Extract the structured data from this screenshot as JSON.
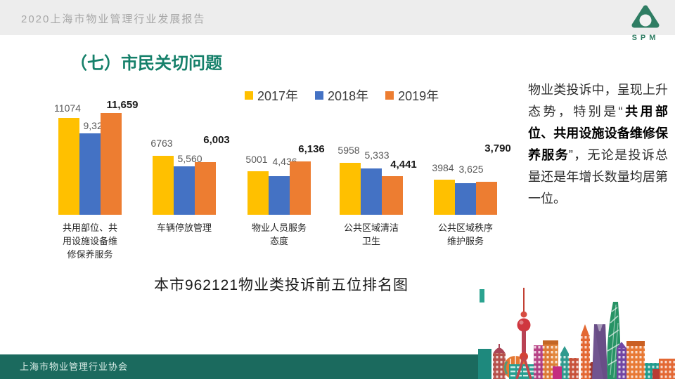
{
  "topbar": {
    "report_title": "2020上海市物业管理行业发展报告"
  },
  "logo": {
    "text": "SPM"
  },
  "page_title": "（七）市民关切问题",
  "chart_data": {
    "type": "bar",
    "title": "本市962121物业类投诉前五位排名图",
    "categories": [
      "共用部位、共用设施设备维修保养服务",
      "车辆停放管理",
      "物业人员服务态度",
      "公共区域清洁卫生",
      "公共区域秩序维护服务"
    ],
    "series": [
      {
        "name": "2017年",
        "color": "#FFC000",
        "values": [
          11074,
          6763,
          5001,
          5958,
          3984
        ],
        "labels": [
          "11074",
          "6763",
          "5001",
          "5958",
          "3984"
        ],
        "bold_labels": false
      },
      {
        "name": "2018年",
        "color": "#4472C4",
        "values": [
          9320,
          5560,
          4436,
          5333,
          3625
        ],
        "labels": [
          "9,320",
          "5,560",
          "4,436",
          "5,333",
          "3,625"
        ],
        "bold_labels": false
      },
      {
        "name": "2019年",
        "color": "#ED7D31",
        "values": [
          11659,
          6003,
          6136,
          4441,
          3790
        ],
        "labels": [
          "11,659",
          "6,003",
          "6,136",
          "4,441",
          "3,790"
        ],
        "bold_labels": true
      }
    ],
    "ylim": [
      0,
      12000
    ],
    "grid": false,
    "legend_position": "top"
  },
  "side_text": {
    "segments": [
      {
        "text": "物业类投诉中，呈现上升态势，特别是“",
        "bold": false
      },
      {
        "text": "共用部位、共用设施设备维修保养服务",
        "bold": true
      },
      {
        "text": "”，无论是投诉总量还是年增长数量均居第一位。",
        "bold": false
      }
    ]
  },
  "footer": {
    "org_name": "上海市物业管理行业协会"
  },
  "colors": {
    "title_green": "#15806A",
    "footer_green": "#1B6A5E",
    "logo_green": "#2F7D63",
    "topbar_gray": "#EDEDED",
    "value_label_gray": "#595959",
    "bold_label_black": "#1A1A1A"
  }
}
